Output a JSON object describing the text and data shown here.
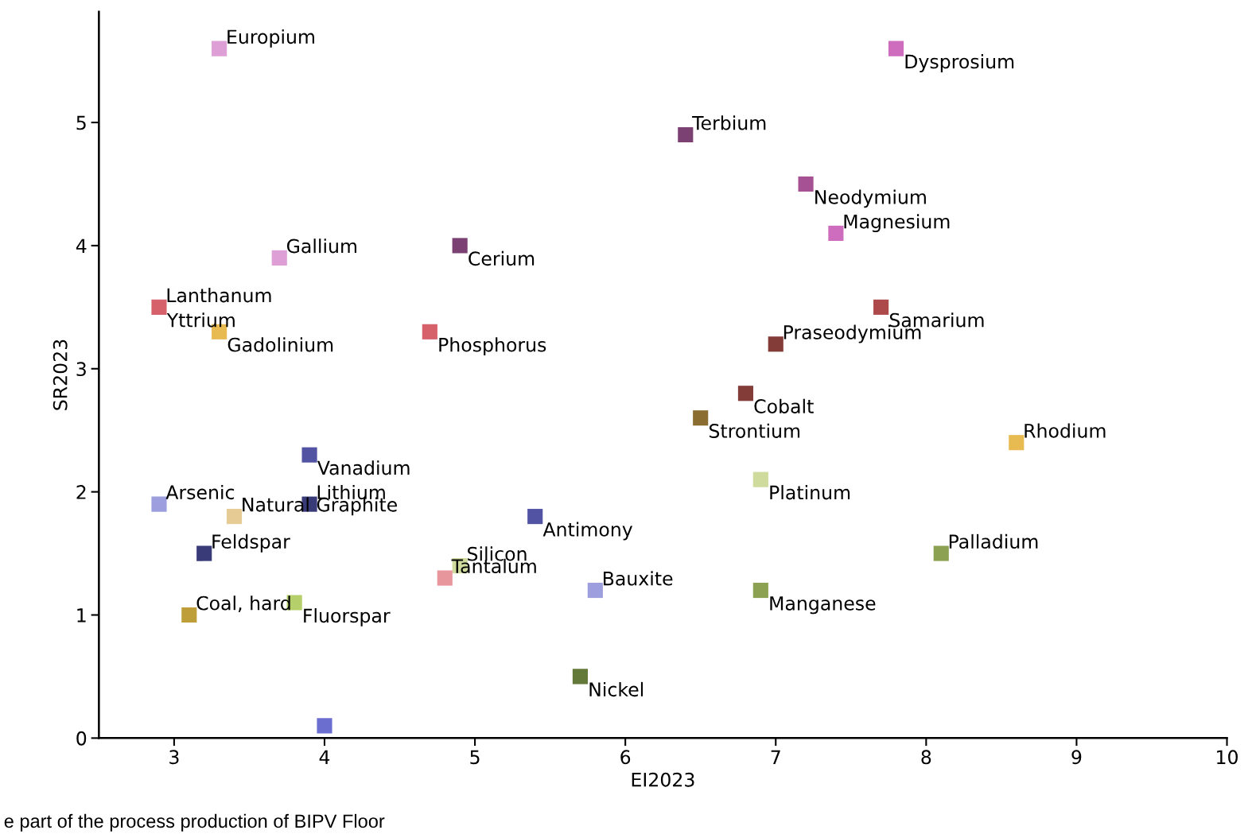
{
  "chart_data": {
    "type": "scatter",
    "xlabel": "EI2023",
    "ylabel": "SR2023",
    "xlim": [
      2.5,
      10
    ],
    "ylim": [
      0,
      5.9
    ],
    "xticks": [
      3,
      4,
      5,
      6,
      7,
      8,
      9,
      10
    ],
    "yticks": [
      0,
      1,
      2,
      3,
      4,
      5
    ],
    "grid": false,
    "legend": false,
    "marker": "square",
    "series": [
      {
        "x": [
          3.3,
          7.8,
          6.4,
          7.2,
          7.4,
          3.7,
          4.9,
          2.9,
          null,
          3.3,
          4.7,
          7.7,
          7.0,
          6.8,
          6.5,
          8.6,
          3.9,
          6.9,
          2.9,
          3.9,
          3.4,
          5.4,
          3.2,
          8.1,
          4.9,
          4.8,
          5.8,
          6.9,
          3.8,
          3.1,
          5.7,
          4.0
        ],
        "values": [
          5.6,
          5.6,
          4.9,
          4.5,
          4.1,
          3.9,
          4.0,
          3.5,
          null,
          3.3,
          3.3,
          3.5,
          3.2,
          2.8,
          2.6,
          2.4,
          2.3,
          2.1,
          1.9,
          1.9,
          1.8,
          1.8,
          1.5,
          1.5,
          1.4,
          1.3,
          1.2,
          1.2,
          1.1,
          1.0,
          0.5,
          0.1
        ],
        "colors": [
          "#de9ed6",
          "#ce6dbd",
          "#7b4173",
          "#a55194",
          "#ce6dbd",
          "#de9ed6",
          "#7b4173",
          "#d6616b",
          "#e7ba52",
          "#e7ba52",
          "#d6616b",
          "#ad494a",
          "#843c39",
          "#843c39",
          "#8c6d31",
          "#e7ba52",
          "#5254a3",
          "#cedb9c",
          "#9c9ede",
          "#393b79",
          "#e7cb94",
          "#5254a3",
          "#393b79",
          "#8ca252",
          "#cedb9c",
          "#e7969c",
          "#9c9ede",
          "#8ca252",
          "#b5cf6b",
          "#bd9e39",
          "#637939",
          "#6b6ecf"
        ]
      }
    ],
    "annotations": [
      {
        "text": "Europium",
        "x": 3.3,
        "y": 5.6
      },
      {
        "text": "Dysprosium",
        "x": 7.8,
        "y": 5.6
      },
      {
        "text": "Terbium",
        "x": 6.4,
        "y": 4.9
      },
      {
        "text": "Neodymium",
        "x": 7.2,
        "y": 4.5
      },
      {
        "text": "Magnesium",
        "x": 7.4,
        "y": 4.1
      },
      {
        "text": "Gallium",
        "x": 3.7,
        "y": 3.9
      },
      {
        "text": "Cerium",
        "x": 4.9,
        "y": 4.0
      },
      {
        "text": "Lanthanum",
        "x": 2.9,
        "y": 3.5
      },
      {
        "text": "Yttrium",
        "x": 2.9,
        "y": 3.5
      },
      {
        "text": "Gadolinium",
        "x": 3.3,
        "y": 3.3
      },
      {
        "text": "Phosphorus",
        "x": 4.7,
        "y": 3.3
      },
      {
        "text": "Samarium",
        "x": 7.7,
        "y": 3.5
      },
      {
        "text": "Praseodymium",
        "x": 7.0,
        "y": 3.2
      },
      {
        "text": "Cobalt",
        "x": 6.8,
        "y": 2.8
      },
      {
        "text": "Strontium",
        "x": 6.5,
        "y": 2.6
      },
      {
        "text": "Rhodium",
        "x": 8.6,
        "y": 2.4
      },
      {
        "text": "Vanadium",
        "x": 3.9,
        "y": 2.3
      },
      {
        "text": "Platinum",
        "x": 6.9,
        "y": 2.1
      },
      {
        "text": "Arsenic",
        "x": 2.9,
        "y": 1.9
      },
      {
        "text": "Lithium",
        "x": 3.9,
        "y": 1.9
      },
      {
        "text": "Natural Graphite",
        "x": 3.4,
        "y": 1.8
      },
      {
        "text": "Antimony",
        "x": 5.4,
        "y": 1.8
      },
      {
        "text": "Feldspar",
        "x": 3.2,
        "y": 1.5
      },
      {
        "text": "Palladium",
        "x": 8.1,
        "y": 1.5
      },
      {
        "text": "Silicon",
        "x": 4.9,
        "y": 1.4
      },
      {
        "text": "Tantalum",
        "x": 4.8,
        "y": 1.3
      },
      {
        "text": "Bauxite",
        "x": 5.8,
        "y": 1.2
      },
      {
        "text": "Manganese",
        "x": 6.9,
        "y": 1.2
      },
      {
        "text": "Fluorspar",
        "x": 3.8,
        "y": 1.1
      },
      {
        "text": "Coal, hard",
        "x": 3.1,
        "y": 1.0
      },
      {
        "text": "Nickel",
        "x": 5.7,
        "y": 0.5
      },
      "e part of the process production of BIPV Floor"
    ]
  }
}
